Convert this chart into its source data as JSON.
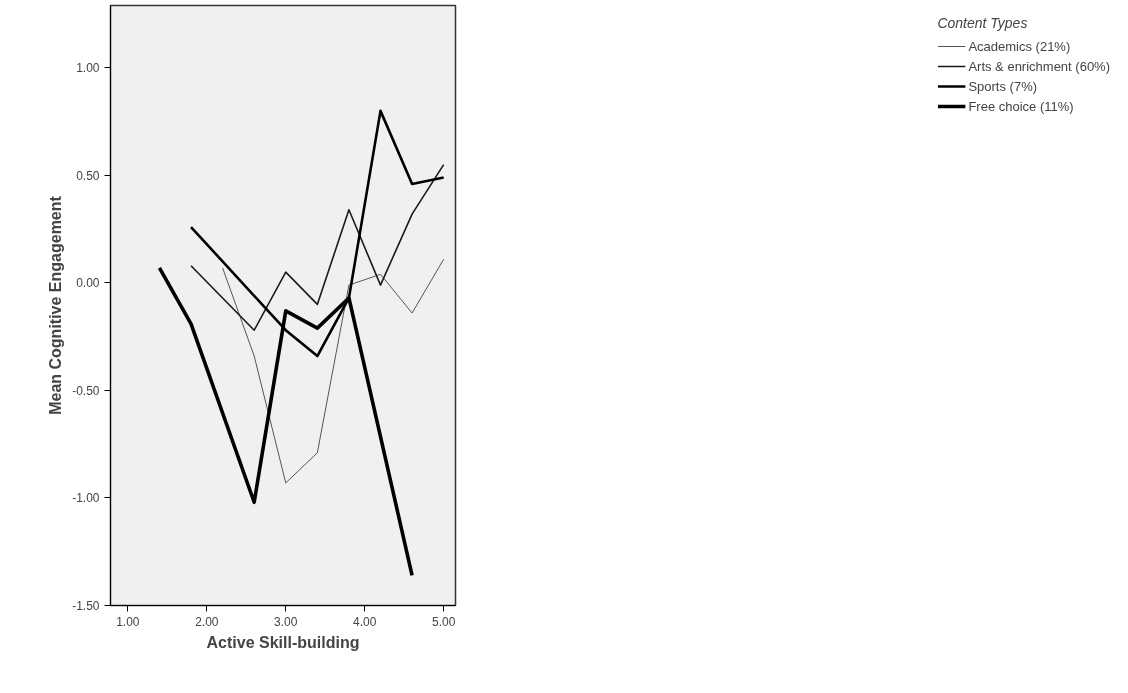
{
  "chart_data": {
    "type": "line",
    "xlabel": "Active Skill-building",
    "ylabel": "Mean Cognitive Engagement",
    "legend_title": "Content Types",
    "xlim": [
      0.78,
      5.15
    ],
    "ylim": [
      -1.5,
      1.29
    ],
    "xticks": [
      {
        "value": 1,
        "label": "1.00"
      },
      {
        "value": 2,
        "label": "2.00"
      },
      {
        "value": 3,
        "label": "3.00"
      },
      {
        "value": 4,
        "label": "4.00"
      },
      {
        "value": 5,
        "label": "5.00"
      }
    ],
    "yticks": [
      {
        "value": -1.5,
        "label": "-1.50"
      },
      {
        "value": -1,
        "label": "-1.00"
      },
      {
        "value": -0.5,
        "label": "-0.50"
      },
      {
        "value": 0,
        "label": "0.00"
      },
      {
        "value": 0.5,
        "label": "0.50"
      },
      {
        "value": 1,
        "label": "1.00"
      }
    ],
    "grid": false,
    "legend": "right",
    "marker": "none",
    "line_style": "solid",
    "series": [
      {
        "name": "Academics (21%)",
        "color": "#555555",
        "x": [
          2.2,
          2.6,
          3.0,
          3.4,
          3.8,
          4.2,
          4.6,
          5.0
        ],
        "values": [
          0.07,
          -0.34,
          -0.93,
          -0.79,
          -0.01,
          0.04,
          -0.14,
          0.11
        ]
      },
      {
        "name": "Arts & enrichment (60%)",
        "color": "#1a1a1a",
        "x": [
          1.8,
          2.6,
          3.0,
          3.4,
          3.8,
          4.2,
          4.6,
          5.0
        ],
        "values": [
          0.08,
          -0.22,
          0.05,
          -0.1,
          0.34,
          -0.01,
          0.32,
          0.55
        ]
      },
      {
        "name": "Sports (7%)",
        "color": "#000000",
        "x": [
          1.8,
          3.0,
          3.4,
          3.8,
          4.2,
          4.6,
          5.0
        ],
        "values": [
          0.26,
          -0.22,
          -0.34,
          -0.07,
          0.8,
          0.46,
          0.49
        ]
      },
      {
        "name": "Free choice (11%)",
        "color": "#000000",
        "x": [
          1.4,
          1.8,
          2.6,
          3.0,
          3.4,
          3.8,
          4.6
        ],
        "values": [
          0.07,
          -0.19,
          -1.02,
          -0.13,
          -0.21,
          -0.07,
          -1.36
        ]
      }
    ]
  }
}
